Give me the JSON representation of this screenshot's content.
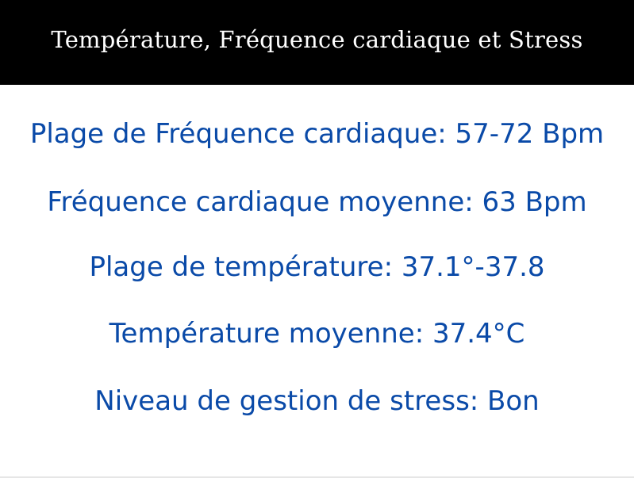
{
  "header": {
    "title": "Température, Fréquence cardiaque et Stress"
  },
  "stats": [
    {
      "text": "Plage de Fréquence cardiaque: 57-72 Bpm"
    },
    {
      "text": "Fréquence cardiaque moyenne: 63 Bpm"
    },
    {
      "text": "Plage de température: 37.1°-37.8"
    },
    {
      "text": "Température moyenne: 37.4°C"
    },
    {
      "text": "Niveau de gestion de stress: Bon"
    }
  ],
  "colors": {
    "header_bg": "#000000",
    "header_text": "#ffffff",
    "stat_text": "#0a4aa8"
  }
}
